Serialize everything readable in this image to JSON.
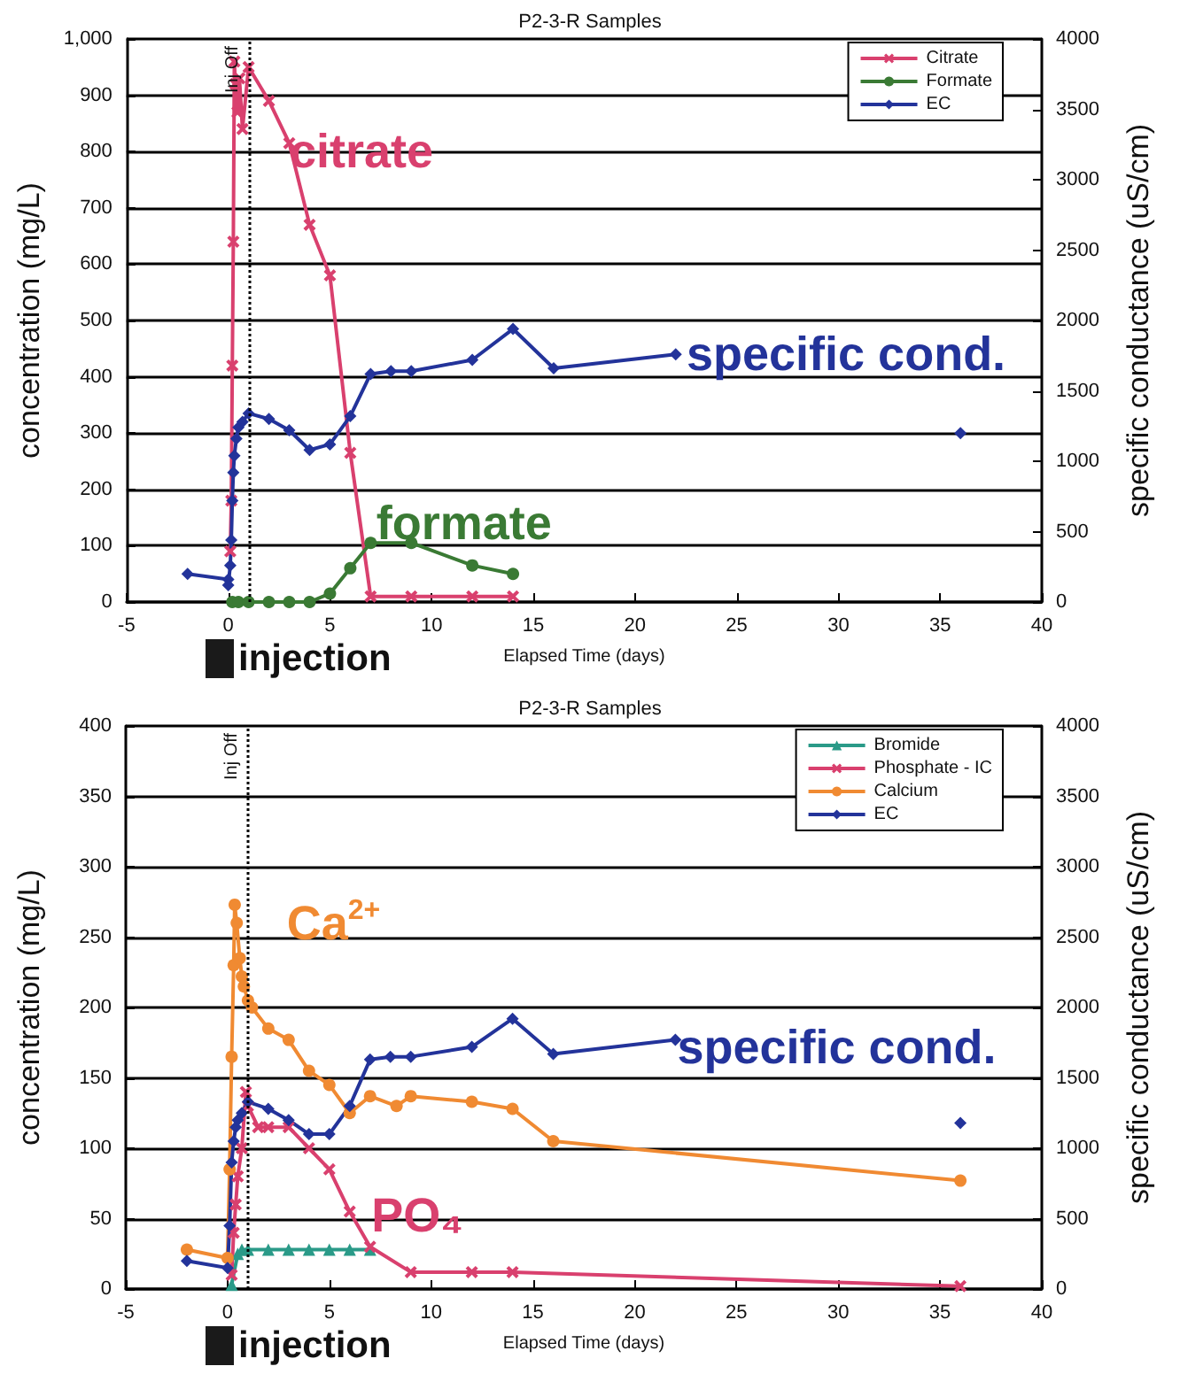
{
  "chart_data": [
    {
      "type": "line",
      "title": "P2-3-R Samples",
      "xlabel": "Elapsed Time (days)",
      "ylabel": "concentration (mg/L)",
      "y2label": "specific conductance (uS/cm)",
      "xlim": [
        -5,
        40
      ],
      "xticks": [
        -5,
        0,
        5,
        10,
        15,
        20,
        25,
        30,
        35,
        40
      ],
      "ylim": [
        0,
        1000
      ],
      "yticks": [
        0,
        100,
        200,
        300,
        400,
        500,
        600,
        700,
        800,
        900,
        {
          "value": 1000,
          "label": "1,000"
        }
      ],
      "y2lim": [
        0,
        4000
      ],
      "y2ticks": [
        0,
        500,
        1000,
        1500,
        2000,
        2500,
        3000,
        3500,
        4000
      ],
      "grid": "y",
      "legend": "top right",
      "series": [
        {
          "name": "Citrate",
          "color": "#d9406e",
          "marker": "cross",
          "x": [
            0.1,
            0.15,
            0.2,
            0.25,
            0.3,
            0.35,
            0.45,
            0.55,
            0.7,
            1,
            2,
            3,
            4,
            5,
            6,
            7,
            9,
            12,
            14
          ],
          "values": [
            90,
            180,
            420,
            640,
            960,
            920,
            870,
            930,
            840,
            950,
            890,
            815,
            670,
            580,
            265,
            10,
            10,
            10,
            10
          ]
        },
        {
          "name": "Formate",
          "color": "#3a7a34",
          "marker": "circle",
          "x": [
            0.2,
            0.5,
            1,
            2,
            3,
            4,
            5,
            6,
            7,
            9,
            12,
            14
          ],
          "values": [
            0,
            0,
            0,
            0,
            0,
            0,
            15,
            60,
            105,
            105,
            65,
            50
          ]
        },
        {
          "name": "EC",
          "color": "#23339a",
          "marker": "diamond",
          "axis": "y2",
          "x": [
            -2,
            0,
            0,
            0.1,
            0.15,
            0.2,
            0.25,
            0.3,
            0.4,
            0.5,
            0.7,
            1,
            2,
            3,
            4,
            5,
            6,
            7,
            8,
            9,
            12,
            14,
            16,
            22
          ],
          "values": [
            200,
            160,
            120,
            260,
            440,
            720,
            920,
            1040,
            1160,
            1240,
            1280,
            1340,
            1300,
            1220,
            1080,
            1120,
            1320,
            1620,
            1640,
            1640,
            1720,
            1940,
            1660,
            1760
          ]
        },
        {
          "color": "#23339a",
          "marker": "diamond",
          "axis": "y2",
          "x": [
            36
          ],
          "values": [
            1200
          ]
        }
      ],
      "ref_lines": [
        {
          "axis": "x",
          "value": 1,
          "label": "Inj Off",
          "color": "#000000",
          "line_style": "dotted"
        }
      ],
      "annotations": [
        "citrate",
        "formate",
        "specific cond.",
        "injection"
      ]
    },
    {
      "type": "line",
      "title": "P2-3-R Samples",
      "xlabel": "Elapsed Time (days)",
      "ylabel": "concentration (mg/L)",
      "y2label": "specific conductance (uS/cm)",
      "xlim": [
        -5,
        40
      ],
      "xticks": [
        -5,
        0,
        5,
        10,
        15,
        20,
        25,
        30,
        35,
        40
      ],
      "ylim": [
        0,
        400
      ],
      "yticks": [
        0,
        50,
        100,
        150,
        200,
        250,
        300,
        350,
        400
      ],
      "y2lim": [
        0,
        4000
      ],
      "y2ticks": [
        0,
        500,
        1000,
        1500,
        2000,
        2500,
        3000,
        3500,
        4000
      ],
      "grid": "y",
      "legend": "top right",
      "series": [
        {
          "name": "Bromide",
          "color": "#2a9a88",
          "marker": "triangle",
          "x": [
            0.2,
            0.5,
            0.7,
            1,
            2,
            3,
            4,
            5,
            6,
            7
          ],
          "values": [
            3,
            25,
            28,
            28,
            28,
            28,
            28,
            28,
            28,
            28
          ]
        },
        {
          "name": "Phosphate - IC",
          "color": "#d9406e",
          "marker": "cross",
          "x": [
            0.2,
            0.3,
            0.4,
            0.5,
            0.7,
            0.9,
            1,
            1.5,
            2,
            3,
            4,
            5,
            6,
            7,
            9,
            12,
            14,
            36
          ],
          "values": [
            10,
            40,
            60,
            80,
            100,
            140,
            130,
            115,
            115,
            115,
            100,
            85,
            55,
            30,
            12,
            12,
            12,
            2
          ]
        },
        {
          "name": "Calcium",
          "color": "#f08a32",
          "marker": "circle",
          "x": [
            -2,
            0,
            0.1,
            0.2,
            0.3,
            0.35,
            0.45,
            0.6,
            0.7,
            0.8,
            1,
            1.2,
            2,
            3,
            4,
            5,
            6,
            7,
            8.3,
            9,
            12,
            14,
            16,
            36
          ],
          "values": [
            28,
            22,
            85,
            165,
            230,
            273,
            260,
            235,
            222,
            215,
            205,
            200,
            185,
            177,
            155,
            145,
            125,
            137,
            130,
            137,
            133,
            128,
            105,
            77
          ]
        },
        {
          "name": "EC",
          "color": "#23339a",
          "marker": "diamond",
          "axis": "y2",
          "x": [
            -2,
            0,
            0.1,
            0.2,
            0.3,
            0.4,
            0.5,
            0.7,
            1,
            2,
            3,
            4,
            5,
            6,
            7,
            8,
            9,
            12,
            14,
            16,
            22
          ],
          "values": [
            200,
            150,
            450,
            900,
            1050,
            1150,
            1200,
            1250,
            1330,
            1280,
            1200,
            1100,
            1100,
            1300,
            1630,
            1650,
            1650,
            1720,
            1920,
            1670,
            1770
          ]
        },
        {
          "color": "#23339a",
          "marker": "diamond",
          "axis": "y2",
          "x": [
            36
          ],
          "values": [
            1180
          ]
        }
      ],
      "ref_lines": [
        {
          "axis": "x",
          "value": 1,
          "label": "Inj Off",
          "color": "#000000",
          "line_style": "dotted"
        }
      ],
      "annotations": [
        "Ca$^{2+}$",
        "PO₄",
        "specific cond.",
        "injection"
      ]
    }
  ]
}
